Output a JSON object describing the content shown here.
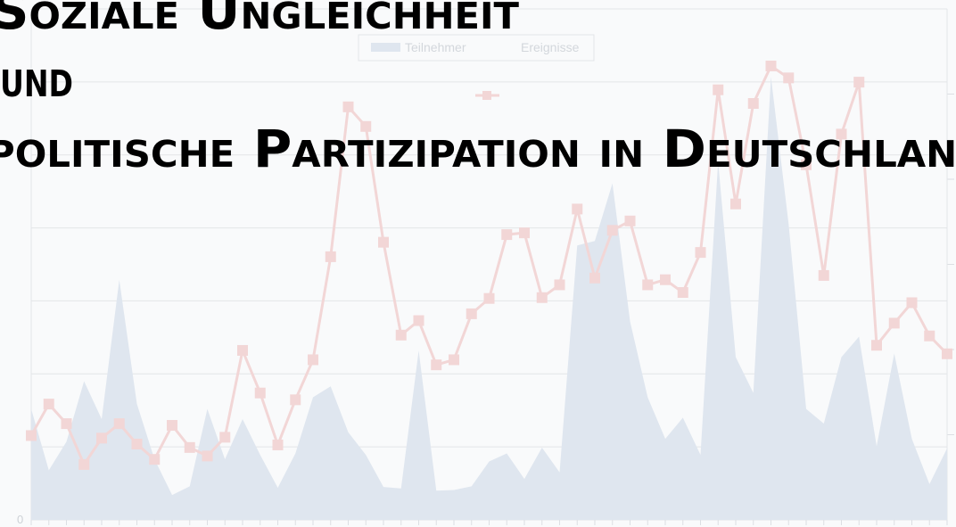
{
  "header": {
    "title_lines": [
      "Soziale Ungleichheit",
      "und",
      "politische Partizipation in Deutschland"
    ]
  },
  "chart_data": {
    "type": "combo",
    "categories": [
      null,
      null,
      null,
      null,
      null,
      null,
      null,
      null,
      null,
      null,
      null,
      null,
      null,
      null,
      null,
      null,
      null,
      null,
      null,
      null,
      null,
      null,
      null,
      null,
      null,
      null,
      null,
      null,
      null,
      null,
      null,
      null,
      null,
      null,
      null,
      null,
      null,
      null,
      null,
      null,
      null,
      null,
      null,
      null,
      null,
      null,
      null,
      null,
      null,
      null,
      null,
      null,
      null
    ],
    "series": [
      {
        "name": "Teilnehmer",
        "type": "area",
        "color": "#dfe6ef",
        "values": [
          1.52,
          0.68,
          1.07,
          1.9,
          1.38,
          3.29,
          1.59,
          0.83,
          0.34,
          0.46,
          1.52,
          0.83,
          1.38,
          0.89,
          0.44,
          0.91,
          1.68,
          1.83,
          1.2,
          0.89,
          0.45,
          0.43,
          2.32,
          0.4,
          0.41,
          0.46,
          0.8,
          0.91,
          0.56,
          0.99,
          0.65,
          3.76,
          3.82,
          4.61,
          2.72,
          1.68,
          1.11,
          1.4,
          0.89,
          4.91,
          2.23,
          1.74,
          6.07,
          4.06,
          1.52,
          1.32,
          2.23,
          2.51,
          1.01,
          2.28,
          1.11,
          0.49,
          0.98
        ]
      },
      {
        "name": "Ereignisse",
        "type": "line",
        "axis": "y2",
        "color": "#f2d6d6",
        "values": [
          0.99,
          1.36,
          1.13,
          0.65,
          0.96,
          1.13,
          0.89,
          0.71,
          1.11,
          0.85,
          0.75,
          0.97,
          1.99,
          1.49,
          0.88,
          1.41,
          1.88,
          3.09,
          4.85,
          4.62,
          3.26,
          2.17,
          2.34,
          1.82,
          1.88,
          2.42,
          2.6,
          3.35,
          3.37,
          2.61,
          2.76,
          3.65,
          2.84,
          3.4,
          3.51,
          2.76,
          2.82,
          2.67,
          3.14,
          5.05,
          3.71,
          4.89,
          5.33,
          5.19,
          4.17,
          2.87,
          4.53,
          5.14,
          2.05,
          2.31,
          2.55,
          2.16,
          1.95
        ]
      }
    ],
    "ylim": [
      0,
      7
    ],
    "yticks": [
      0
    ],
    "ygrid": [
      0,
      1,
      2,
      3,
      4,
      5,
      6,
      7
    ],
    "y2lim": [
      0,
      6
    ],
    "y2marks": [
      1,
      2,
      3,
      4,
      5
    ],
    "grid": true,
    "legend": "top"
  }
}
